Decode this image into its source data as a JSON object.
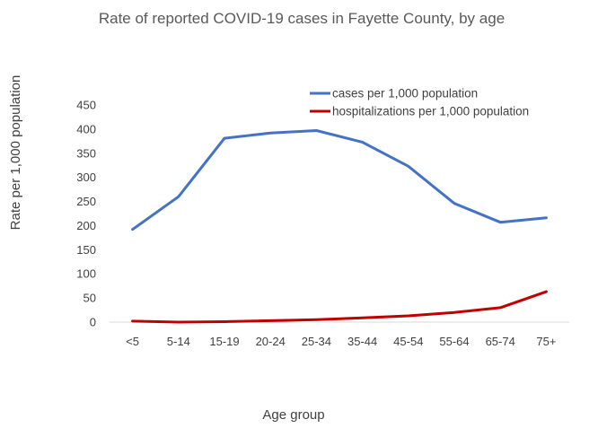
{
  "chart_data": {
    "type": "line",
    "title": "Rate of reported COVID-19 cases in Fayette County, by age",
    "xlabel": "Age group",
    "ylabel": "Rate per 1,000 population",
    "categories": [
      "<5",
      "5-14",
      "15-19",
      "20-24",
      "25-34",
      "35-44",
      "45-54",
      "55-64",
      "65-74",
      "75+"
    ],
    "ylim": [
      0,
      450
    ],
    "yticks": [
      0,
      50,
      100,
      150,
      200,
      250,
      300,
      350,
      400,
      450
    ],
    "grid": false,
    "legend_position": "top-right",
    "series": [
      {
        "name": "cases per 1,000 population",
        "color": "#4472C4",
        "values": [
          192,
          260,
          381,
          392,
          397,
          373,
          323,
          246,
          207,
          216
        ]
      },
      {
        "name": "hospitalizations per 1,000 population",
        "color": "#C00000",
        "values": [
          2,
          0,
          1,
          3,
          5,
          9,
          13,
          20,
          30,
          63
        ]
      }
    ]
  }
}
